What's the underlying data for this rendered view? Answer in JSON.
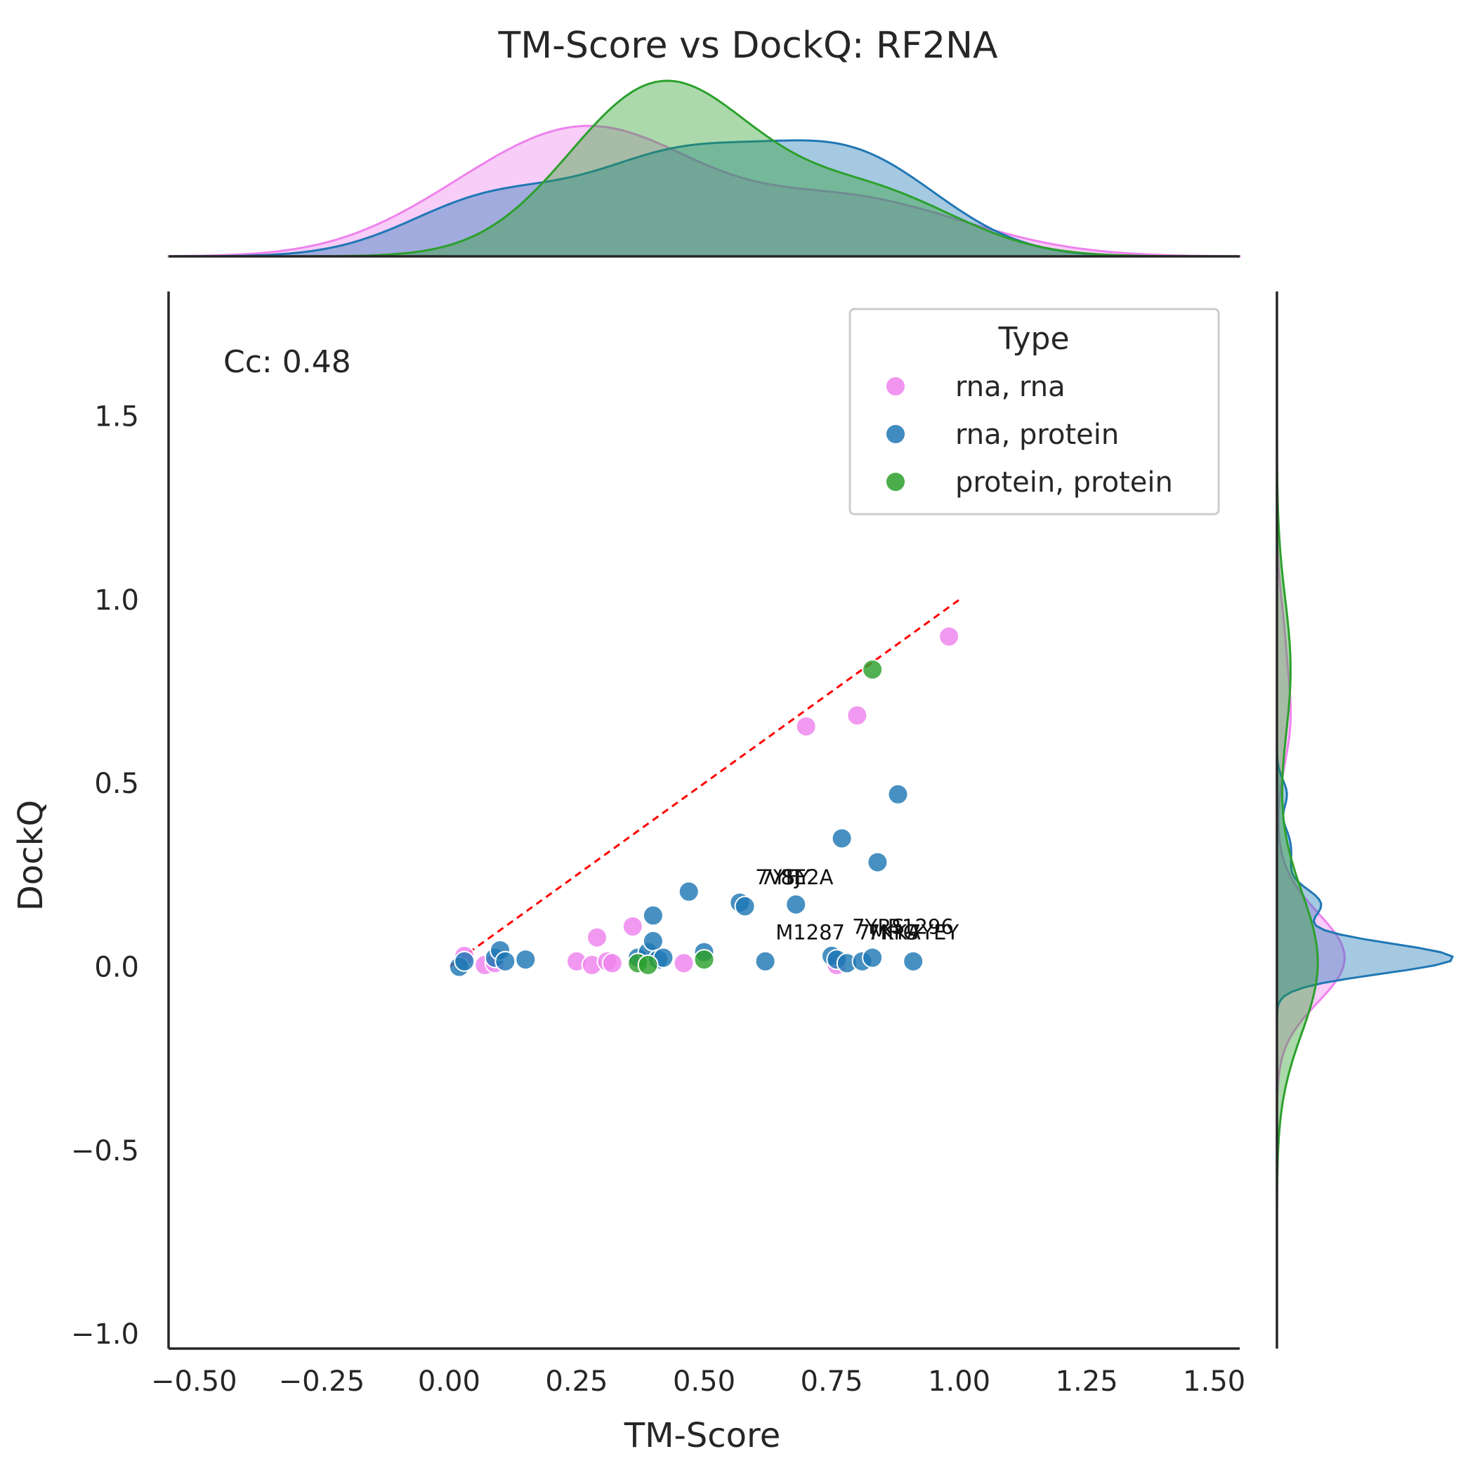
{
  "chart_data": {
    "type": "scatter",
    "title": "TM-Score vs DockQ: RF2NA",
    "xlabel": "TM-Score",
    "ylabel": "DockQ",
    "xlim": [
      -0.55,
      1.55
    ],
    "ylim": [
      -1.04,
      1.84
    ],
    "x_ticks": [
      "−0.50",
      "−0.25",
      "0.00",
      "0.25",
      "0.50",
      "0.75",
      "1.00",
      "1.25",
      "1.50"
    ],
    "x_tick_values": [
      -0.5,
      -0.25,
      0.0,
      0.25,
      0.5,
      0.75,
      1.0,
      1.25,
      1.5
    ],
    "y_ticks": [
      "−1.0",
      "−0.5",
      "0.0",
      "0.5",
      "1.0",
      "1.5"
    ],
    "y_tick_values": [
      -1.0,
      -0.5,
      0.0,
      0.5,
      1.0,
      1.5
    ],
    "grid": false,
    "correlation_text": "Cc: 0.48",
    "reference_line": {
      "x": [
        0,
        1
      ],
      "y": [
        0,
        1
      ],
      "color": "#ff0000",
      "style": "dashed"
    },
    "legend": {
      "title": "Type",
      "placement": "upper-right"
    },
    "series": [
      {
        "name": "rna, rna",
        "color": "#ee82ee",
        "x": [
          0.03,
          0.07,
          0.09,
          0.25,
          0.28,
          0.29,
          0.31,
          0.32,
          0.36,
          0.46,
          0.7,
          0.76,
          0.8,
          0.98
        ],
        "y": [
          0.03,
          0.005,
          0.01,
          0.015,
          0.005,
          0.08,
          0.015,
          0.01,
          0.11,
          0.01,
          0.655,
          0.005,
          0.685,
          0.9
        ]
      },
      {
        "name": "rna, protein",
        "color": "#1f77b4",
        "x": [
          0.02,
          0.03,
          0.09,
          0.1,
          0.11,
          0.15,
          0.37,
          0.39,
          0.4,
          0.4,
          0.41,
          0.42,
          0.47,
          0.5,
          0.57,
          0.58,
          0.62,
          0.68,
          0.75,
          0.76,
          0.77,
          0.78,
          0.81,
          0.83,
          0.84,
          0.88,
          0.91
        ],
        "y": [
          0.0,
          0.015,
          0.025,
          0.045,
          0.015,
          0.02,
          0.025,
          0.04,
          0.07,
          0.14,
          0.02,
          0.025,
          0.205,
          0.04,
          0.175,
          0.165,
          0.015,
          0.17,
          0.03,
          0.02,
          0.35,
          0.01,
          0.015,
          0.025,
          0.285,
          0.47,
          0.015
        ]
      },
      {
        "name": "protein, protein",
        "color": "#2ca02c",
        "x": [
          0.37,
          0.39,
          0.5,
          0.83
        ],
        "y": [
          0.01,
          0.005,
          0.02,
          0.81
        ]
      }
    ],
    "annotations": [
      {
        "text": "7YFY",
        "x": 0.61,
        "y": 0.225
      },
      {
        "text": "7VSJ",
        "x": 0.6,
        "y": 0.225
      },
      {
        "text": "8E2A",
        "x": 0.65,
        "y": 0.225
      },
      {
        "text": "M1287",
        "x": 0.64,
        "y": 0.075
      },
      {
        "text": "7YRS",
        "x": 0.79,
        "y": 0.09
      },
      {
        "text": "7MHG",
        "x": 0.8,
        "y": 0.075
      },
      {
        "text": "7KKA",
        "x": 0.82,
        "y": 0.075
      },
      {
        "text": "R1296",
        "x": 0.86,
        "y": 0.09
      },
      {
        "text": "7YEY",
        "x": 0.9,
        "y": 0.075
      }
    ]
  }
}
